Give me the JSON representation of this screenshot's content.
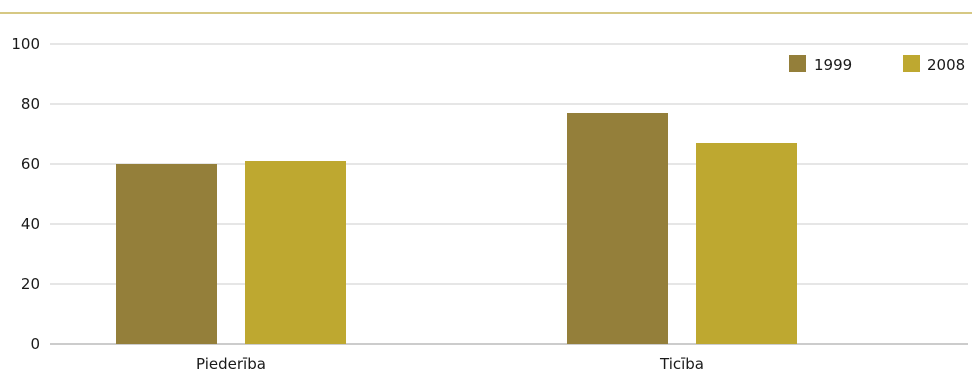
{
  "chart_data": {
    "type": "bar",
    "categories": [
      "Piederība",
      "Ticība"
    ],
    "series": [
      {
        "name": "1999",
        "values": [
          60,
          77
        ],
        "color": "#947f3a"
      },
      {
        "name": "2008",
        "values": [
          61,
          67
        ],
        "color": "#bea830"
      }
    ],
    "yticks": [
      0,
      20,
      40,
      60,
      80,
      100
    ],
    "ylim": [
      0,
      100
    ],
    "grid": true,
    "legend": "top-right",
    "colors": {
      "top_rule": "#c9b65a",
      "grid": "#cccccc",
      "axis": "#999999"
    }
  }
}
